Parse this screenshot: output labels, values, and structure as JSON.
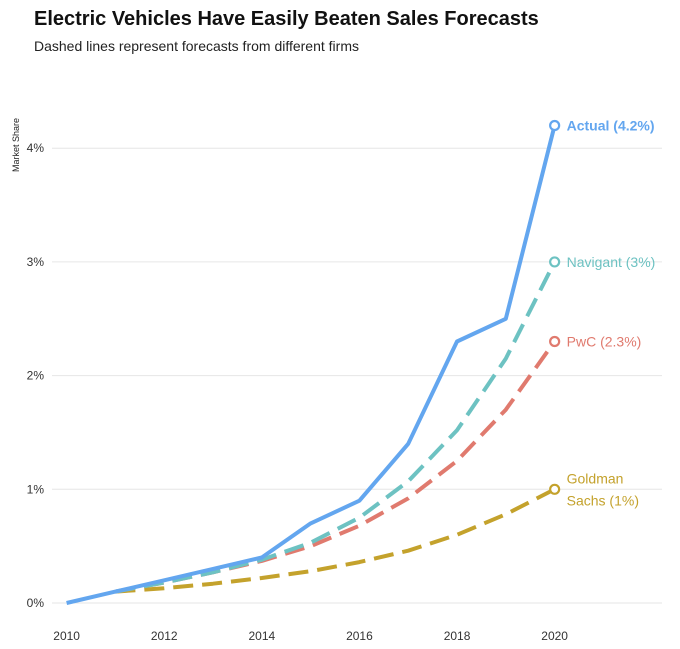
{
  "header": {
    "title": "Electric Vehicles Have Easily Beaten Sales Forecasts",
    "subtitle": "Dashed lines represent forecasts from different firms"
  },
  "chart_data": {
    "type": "line",
    "title": "Electric Vehicles Have Easily Beaten Sales Forecasts",
    "subtitle": "Dashed lines represent forecasts from different firms",
    "xlabel": "",
    "ylabel": "Market Share",
    "xlim": [
      2009.7,
      2022.2
    ],
    "ylim": [
      0,
      4.6
    ],
    "x_ticks": [
      2010,
      2012,
      2014,
      2016,
      2018,
      2020
    ],
    "y_ticks": [
      0,
      1,
      2,
      3,
      4
    ],
    "y_tick_labels": [
      "0%",
      "1%",
      "2%",
      "3%",
      "4%"
    ],
    "grid": "horizontal",
    "legend": "direct labels at line ends",
    "series": [
      {
        "key": "goldman",
        "label_lines": [
          "Goldman",
          "Sachs (1%)"
        ],
        "style": "dashed",
        "color": "#c4a22c",
        "bold_label": false,
        "x": [
          2011,
          2012,
          2013,
          2014,
          2015,
          2016,
          2017,
          2018,
          2019,
          2020
        ],
        "y": [
          0.1,
          0.13,
          0.17,
          0.22,
          0.28,
          0.36,
          0.46,
          0.6,
          0.78,
          1.0
        ]
      },
      {
        "key": "pwc",
        "label_lines": [
          "PwC (2.3%)"
        ],
        "style": "dashed",
        "color": "#e07a6e",
        "bold_label": false,
        "x": [
          2011,
          2012,
          2013,
          2014,
          2015,
          2016,
          2017,
          2018,
          2019,
          2020
        ],
        "y": [
          0.1,
          0.18,
          0.27,
          0.37,
          0.5,
          0.68,
          0.92,
          1.25,
          1.7,
          2.3
        ]
      },
      {
        "key": "navigant",
        "label_lines": [
          "Navigant (3%)"
        ],
        "style": "dashed",
        "color": "#6dc2c2",
        "bold_label": false,
        "x": [
          2011,
          2012,
          2013,
          2014,
          2015,
          2016,
          2017,
          2018,
          2019,
          2020
        ],
        "y": [
          0.1,
          0.18,
          0.27,
          0.38,
          0.53,
          0.75,
          1.07,
          1.52,
          2.15,
          3.0
        ]
      },
      {
        "key": "actual",
        "label_lines": [
          "Actual (4.2%)"
        ],
        "style": "solid",
        "color": "#63a6ef",
        "bold_label": true,
        "x": [
          2010,
          2011,
          2012,
          2013,
          2014,
          2015,
          2016,
          2017,
          2018,
          2019,
          2020
        ],
        "y": [
          0.0,
          0.1,
          0.2,
          0.3,
          0.4,
          0.7,
          0.9,
          1.4,
          2.3,
          2.5,
          4.2
        ]
      }
    ]
  },
  "colors": {
    "grid": "#e6e6e6",
    "text": "#333333",
    "background": "#ffffff"
  }
}
